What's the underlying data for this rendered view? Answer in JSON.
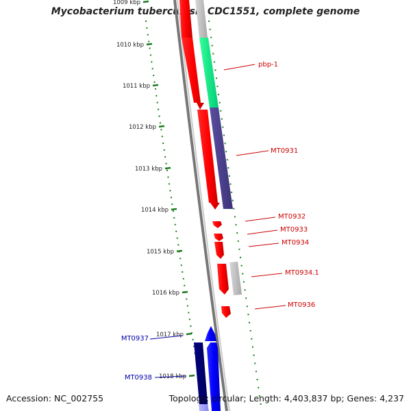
{
  "title": "Mycobacterium tuberculosis CDC1551, complete genome",
  "footer": {
    "accession": "Accession: NC_002755",
    "summary": "Topology: circular; Length: 4,403,837 bp; Genes: 4,237"
  },
  "scale": {
    "unit": "kbp",
    "ticks": [
      {
        "label": "1009 kbp"
      },
      {
        "label": "1010 kbp"
      },
      {
        "label": "1011 kbp"
      },
      {
        "label": "1012 kbp"
      },
      {
        "label": "1013 kbp"
      },
      {
        "label": "1014 kbp"
      },
      {
        "label": "1015 kbp"
      },
      {
        "label": "1016 kbp"
      },
      {
        "label": "1017 kbp"
      },
      {
        "label": "1018 kbp"
      }
    ]
  },
  "genes": [
    {
      "label": "pbp-1",
      "strand": "forward",
      "color": "#cc0000"
    },
    {
      "label": "MT0931",
      "strand": "forward",
      "color": "#cc0000"
    },
    {
      "label": "MT0932",
      "strand": "forward",
      "color": "#cc0000"
    },
    {
      "label": "MT0933",
      "strand": "forward",
      "color": "#cc0000"
    },
    {
      "label": "MT0934",
      "strand": "forward",
      "color": "#cc0000"
    },
    {
      "label": "MT0934.1",
      "strand": "forward",
      "color": "#cc0000"
    },
    {
      "label": "MT0936",
      "strand": "forward",
      "color": "#cc0000"
    },
    {
      "label": "MT0937",
      "strand": "reverse",
      "color": "#0000aa"
    },
    {
      "label": "MT0938",
      "strand": "reverse",
      "color": "#0000aa"
    }
  ],
  "colors": {
    "forward_gene": "#ff0000",
    "reverse_gene": "#0000ff",
    "rna_feature": "#00ee88",
    "cds_feature": "#4b3f8f",
    "other_feature": "#bbbbbb",
    "backbone": "#888888",
    "scale_ticks": "#1a7a1a",
    "forward_label": "#cc0000",
    "reverse_label": "#0000aa"
  }
}
